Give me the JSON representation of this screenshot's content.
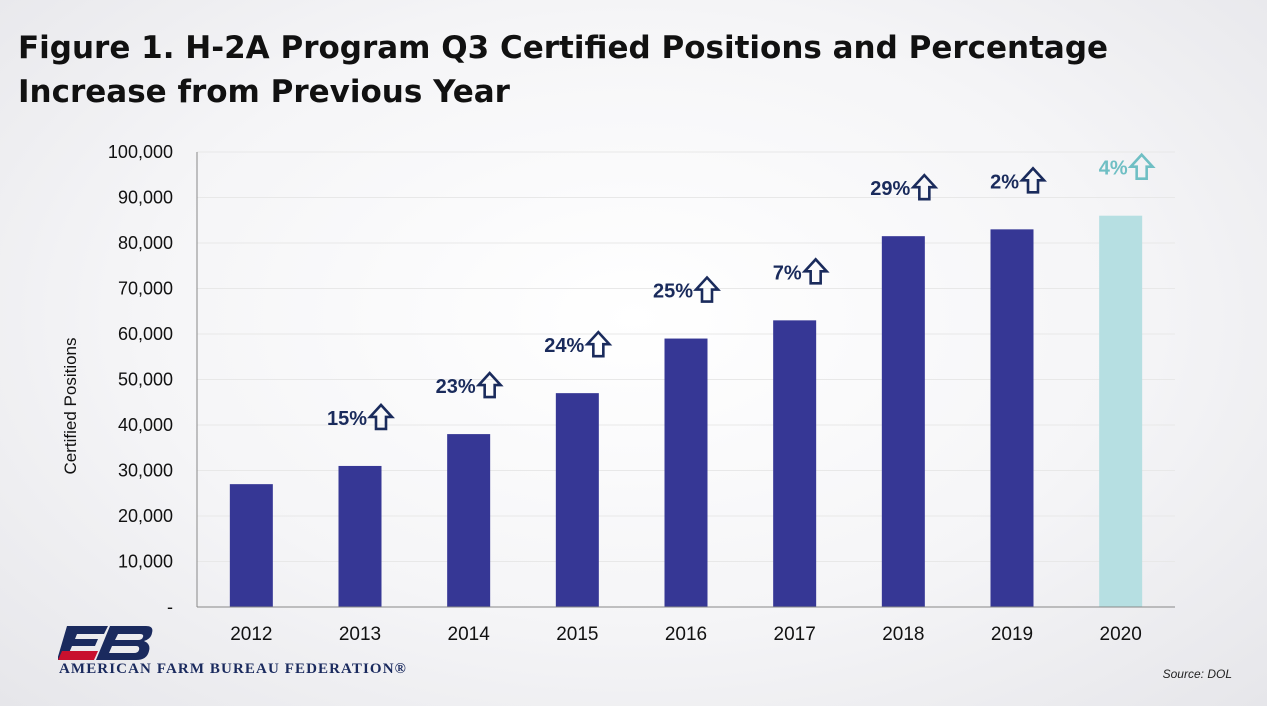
{
  "title": "Figure 1. H-2A Program Q3 Certified Positions and Percentage Increase from Previous Year",
  "source": "Source: DOL",
  "logo": {
    "mark": "FB",
    "org_name": "AMERICAN FARM BUREAU FEDERATION®"
  },
  "colors": {
    "bar": "#363795",
    "highlight_bar": "#b6dfe2",
    "label": "#1a2b5c",
    "highlight_label": "#6fbfc4",
    "axis": "#888888",
    "grid": "#e8e8e8"
  },
  "chart_data": {
    "type": "bar",
    "categories": [
      "2012",
      "2013",
      "2014",
      "2015",
      "2016",
      "2017",
      "2018",
      "2019",
      "2020"
    ],
    "values": [
      27000,
      31000,
      38000,
      47000,
      59000,
      63000,
      81500,
      83000,
      86000
    ],
    "increase_labels": [
      "",
      "15%",
      "23%",
      "24%",
      "25%",
      "7%",
      "29%",
      "2%",
      "4%"
    ],
    "highlighted_categories": [
      "2020"
    ],
    "ylabel": "Certified Positions",
    "xlabel": "",
    "ylim": [
      0,
      100000
    ],
    "yticks": [
      0,
      10000,
      20000,
      30000,
      40000,
      50000,
      60000,
      70000,
      80000,
      90000,
      100000
    ],
    "ytick_labels": [
      "-",
      "10,000",
      "20,000",
      "30,000",
      "40,000",
      "50,000",
      "60,000",
      "70,000",
      "80,000",
      "90,000",
      "100,000"
    ],
    "grid": true,
    "legend": "none"
  }
}
